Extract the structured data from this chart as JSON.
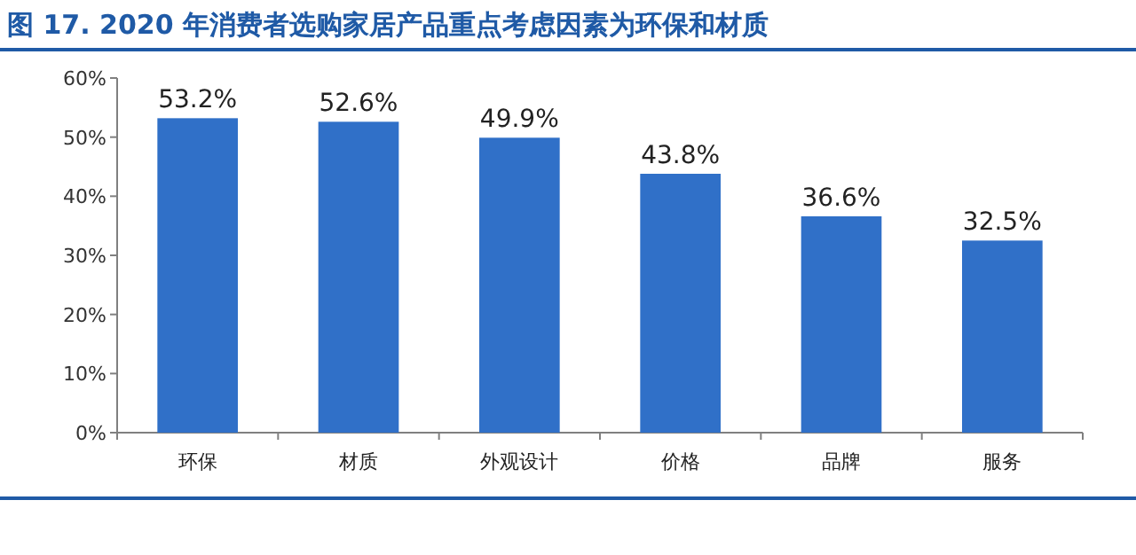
{
  "chart_data": {
    "type": "bar",
    "title": "图 17. 2020 年消费者选购家居产品重点考虑因素为环保和材质",
    "categories": [
      "环保",
      "材质",
      "外观设计",
      "价格",
      "品牌",
      "服务"
    ],
    "values": [
      53.2,
      52.6,
      49.9,
      43.8,
      36.6,
      32.5
    ],
    "value_labels": [
      "53.2%",
      "52.6%",
      "49.9%",
      "43.8%",
      "36.6%",
      "32.5%"
    ],
    "color": "#3070c8",
    "ylim": [
      0,
      60
    ],
    "yticks": [
      {
        "value": 0,
        "label": "0%"
      },
      {
        "value": 10,
        "label": "10%"
      },
      {
        "value": 20,
        "label": "20%"
      },
      {
        "value": 30,
        "label": "30%"
      },
      {
        "value": 40,
        "label": "40%"
      },
      {
        "value": 50,
        "label": "50%"
      },
      {
        "value": 60,
        "label": "60%"
      }
    ],
    "grid": false
  }
}
